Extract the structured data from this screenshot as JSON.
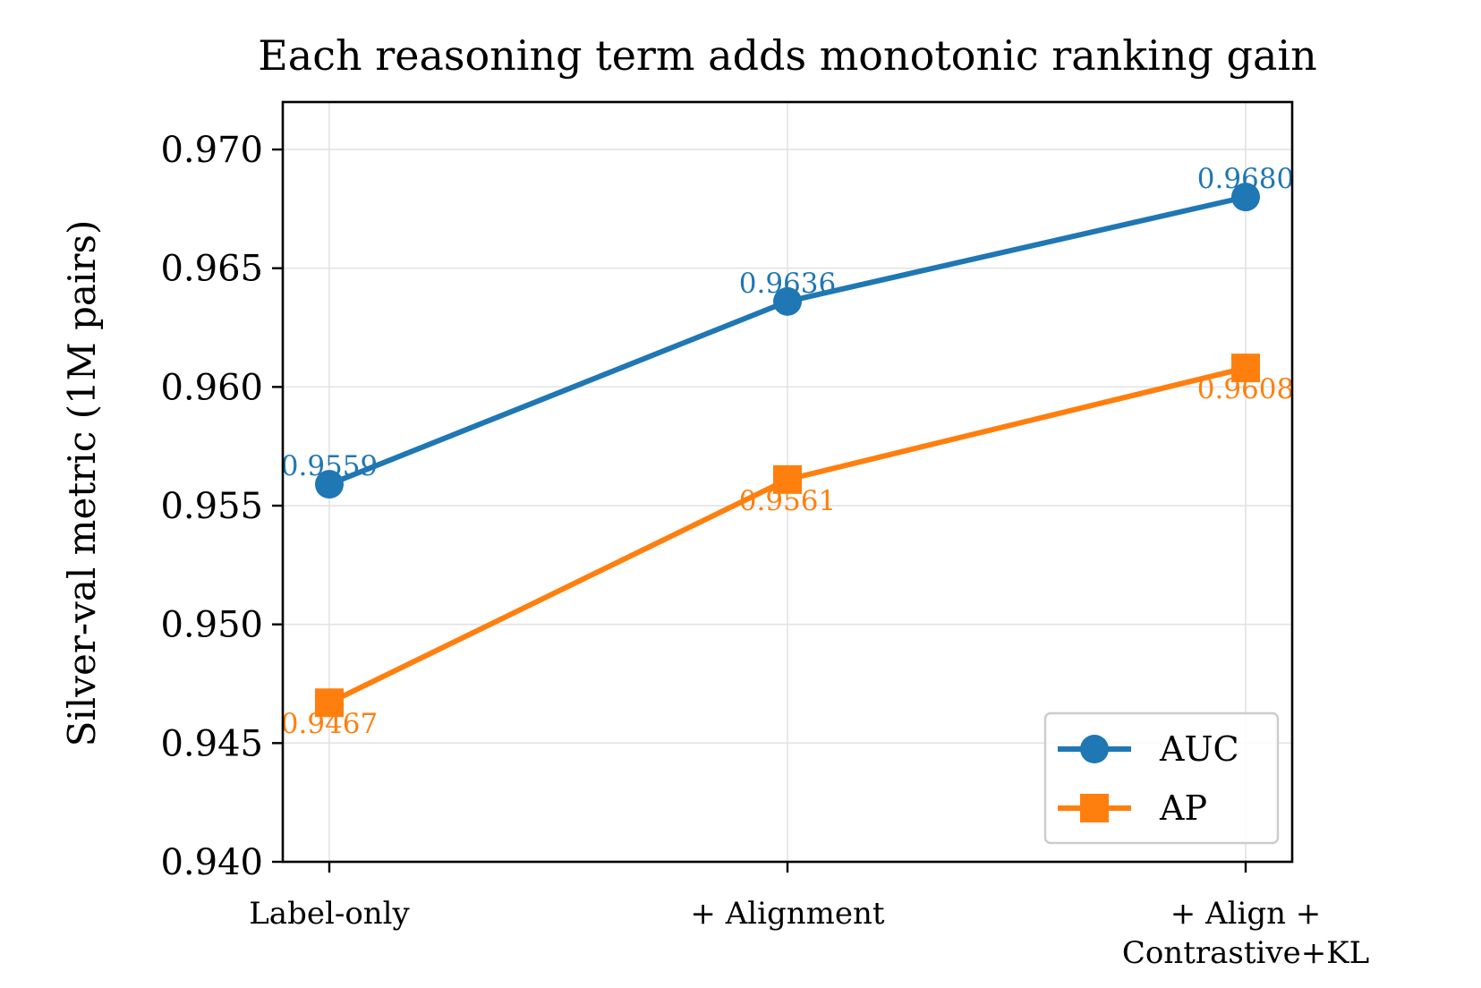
{
  "chart_data": {
    "type": "line",
    "title": "Each reasoning term adds monotonic ranking gain",
    "xlabel": "",
    "ylabel": "Silver-val metric (1M pairs)",
    "categories": [
      "Label-only",
      "+ Alignment",
      "+ Align + Contrastive+KL"
    ],
    "category_lines": [
      [
        "Label-only"
      ],
      [
        "+ Alignment"
      ],
      [
        "+ Align +",
        "Contrastive+KL"
      ]
    ],
    "ylim": [
      0.94,
      0.972
    ],
    "yticks": [
      0.94,
      0.945,
      0.95,
      0.955,
      0.96,
      0.965,
      0.97
    ],
    "ytick_labels": [
      "0.940",
      "0.945",
      "0.950",
      "0.955",
      "0.960",
      "0.965",
      "0.970"
    ],
    "grid": true,
    "legend_position": "bottom-right",
    "series": [
      {
        "name": "AUC",
        "values": [
          0.9559,
          0.9636,
          0.968
        ],
        "labels": [
          "0.9559",
          "0.9636",
          "0.9680"
        ],
        "color": "#1f77b4",
        "marker": "circle",
        "label_placement": "above"
      },
      {
        "name": "AP",
        "values": [
          0.9467,
          0.9561,
          0.9608
        ],
        "labels": [
          "0.9467",
          "0.9561",
          "0.9608"
        ],
        "color": "#ff7f0e",
        "marker": "square",
        "label_placement": "below"
      }
    ]
  }
}
